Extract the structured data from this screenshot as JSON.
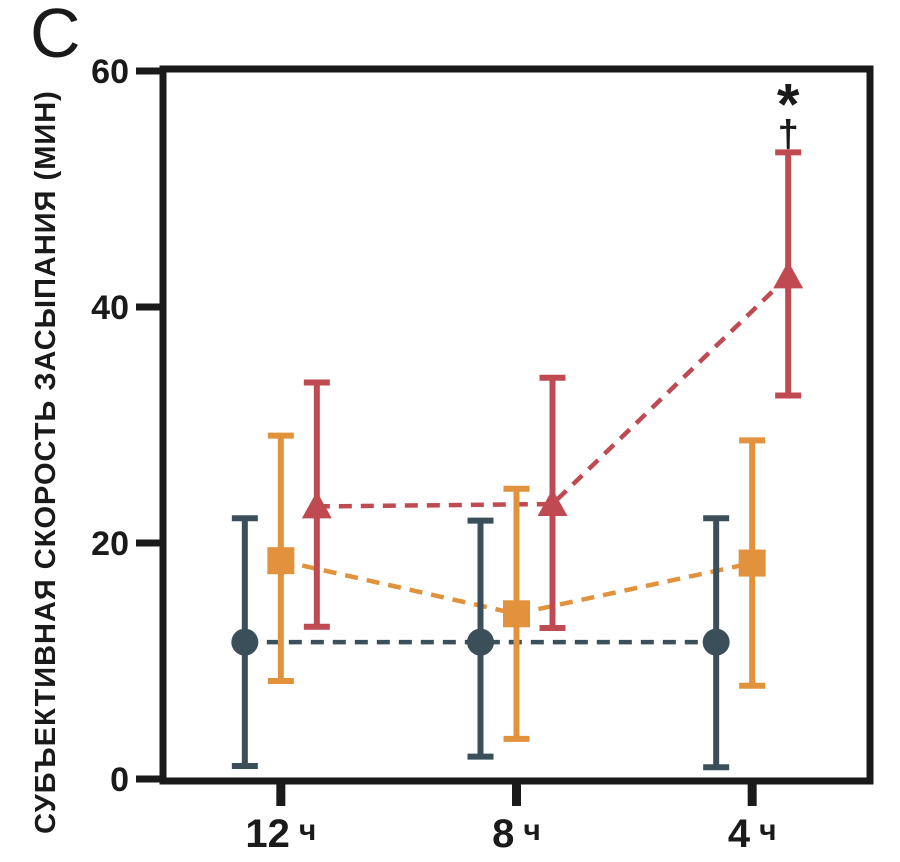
{
  "panel_label": "C",
  "colors": {
    "axis": "#1a1a1a",
    "series_circle": "#3A4F5A",
    "series_square": "#E2913D",
    "series_triangle": "#C04A52"
  },
  "chart_data": {
    "type": "line",
    "title": "",
    "xlabel": "",
    "ylabel": "СУБЪЕКТИВНАЯ СКОРОСТЬ ЗАСЫПАНИЯ (МИН)",
    "categories": [
      "12 ч",
      "8 ч",
      "4 ч"
    ],
    "ylim": [
      0,
      60
    ],
    "y_ticks": [
      0,
      20,
      40,
      60
    ],
    "grid": false,
    "legend": "none",
    "line_style": "dashed",
    "error_bars": true,
    "series": [
      {
        "name": "circle-series",
        "marker": "circle",
        "color": "#3A4F5A",
        "values": [
          11.6,
          11.6,
          11.6
        ],
        "err_lo": [
          1.1,
          1.9,
          1.0
        ],
        "err_hi": [
          22.1,
          21.9,
          22.1
        ]
      },
      {
        "name": "square-series",
        "marker": "square",
        "color": "#E2913D",
        "values": [
          18.5,
          14.0,
          18.3
        ],
        "err_lo": [
          8.3,
          3.4,
          7.9
        ],
        "err_hi": [
          29.1,
          24.6,
          28.7
        ]
      },
      {
        "name": "triangle-series",
        "marker": "triangle",
        "color": "#C04A52",
        "values": [
          23.1,
          23.3,
          42.6
        ],
        "err_lo": [
          12.9,
          12.8,
          32.5
        ],
        "err_hi": [
          33.6,
          34.0,
          53.1
        ]
      }
    ],
    "annotations": [
      {
        "text": "*",
        "category_index": 2,
        "series": "triangle-series"
      },
      {
        "text": "†",
        "category_index": 2,
        "series": "triangle-series"
      }
    ]
  }
}
